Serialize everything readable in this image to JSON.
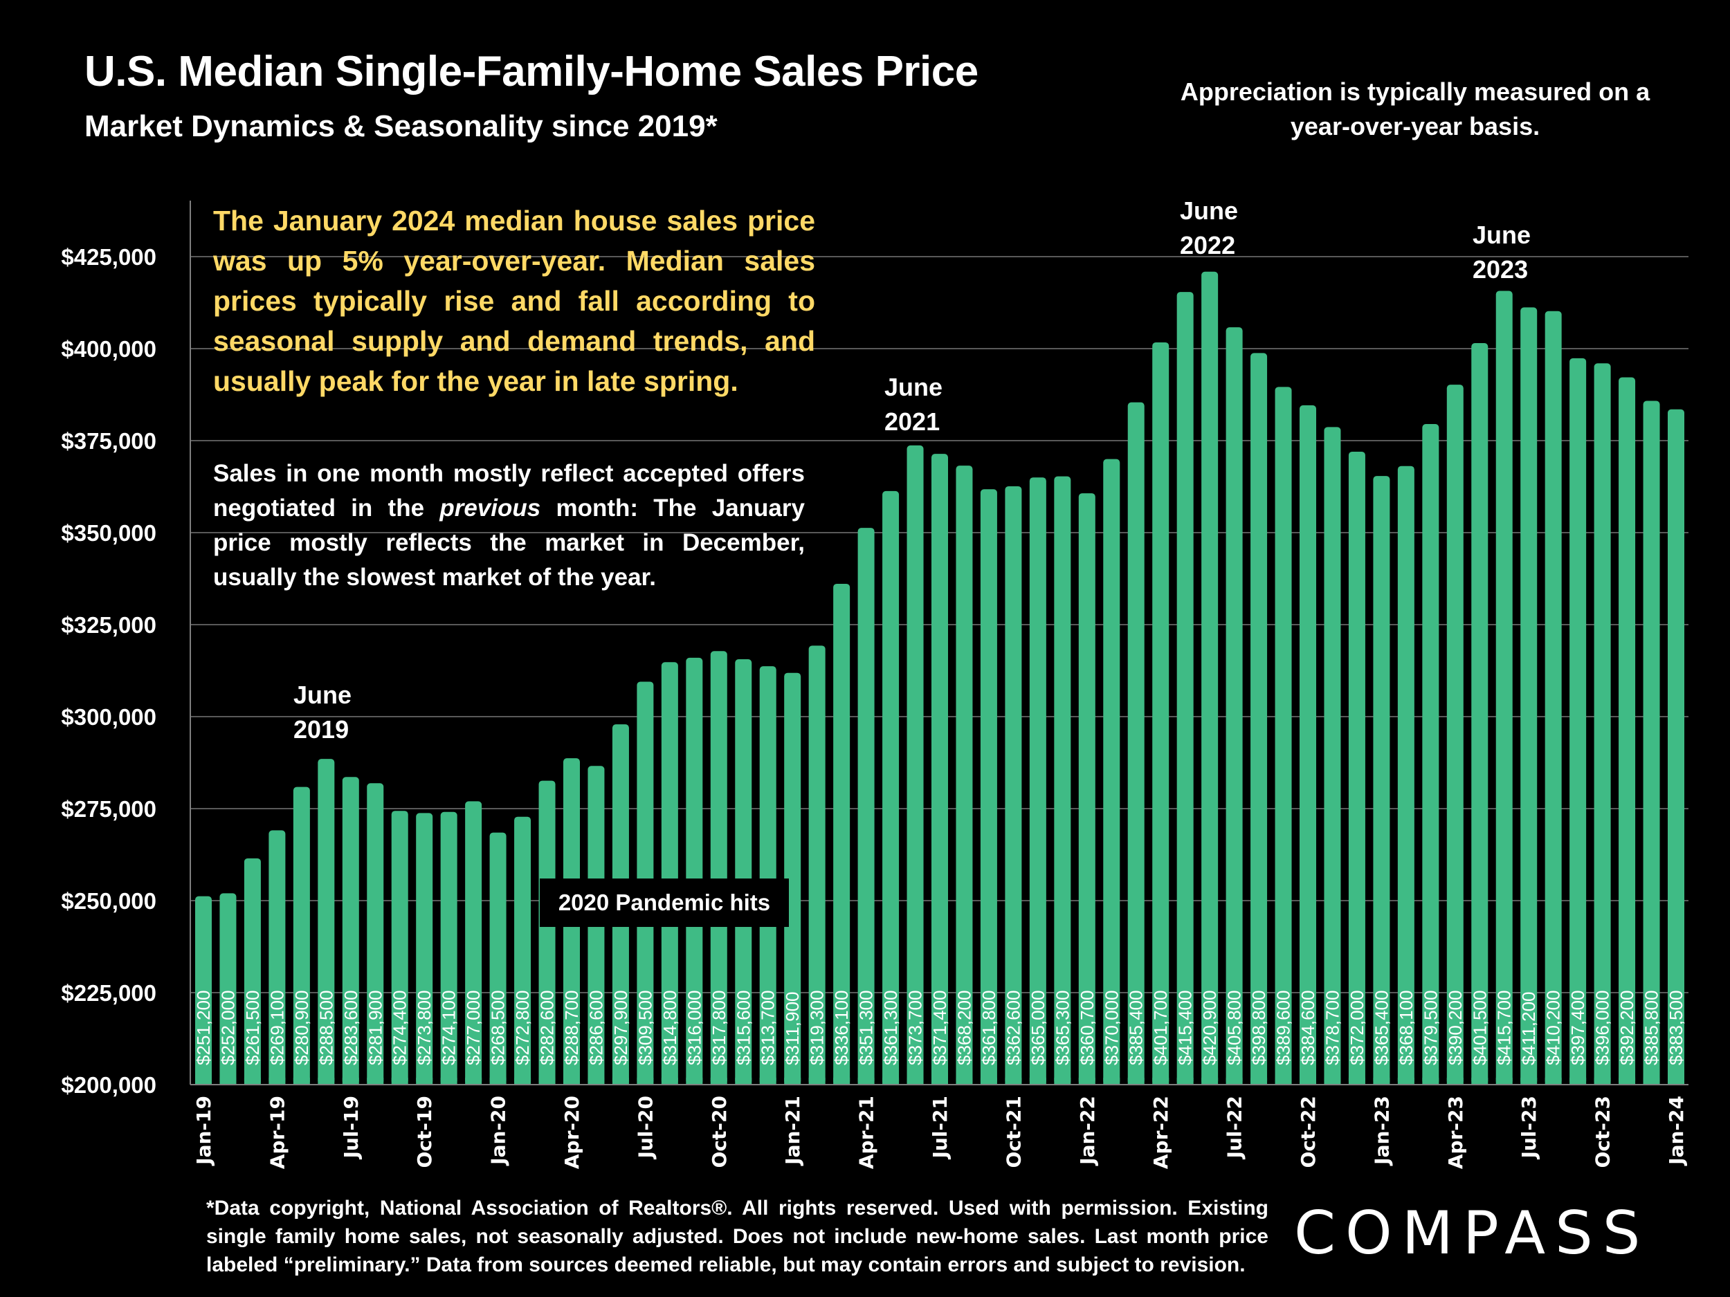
{
  "header": {
    "title": "U.S. Median Single-Family-Home Sales Price",
    "subtitle": "Market Dynamics & Seasonality since 2019*",
    "note": "Appreciation is typically measured on a year-over-year basis."
  },
  "callouts": {
    "gold": "The January 2024 median house sales price was up 5% year-over-year. Median sales prices typically rise and fall according to seasonal supply and demand trends, and usually peak for the year in late spring.",
    "white_before": "Sales in one month mostly reflect accepted offers negotiated in the ",
    "white_em": "previous",
    "white_after": " month: The January price mostly reflects the market in December, usually the slowest market of the year."
  },
  "annotations": {
    "june2019": {
      "line1": "June",
      "line2": "2019"
    },
    "june2021": {
      "line1": "June",
      "line2": "2021"
    },
    "june2022": {
      "line1": "June",
      "line2": "2022"
    },
    "june2023": {
      "line1": "June",
      "line2": "2023"
    },
    "pandemic": "2020 Pandemic hits"
  },
  "footer": {
    "text": "*Data copyright, National Association of Realtors®. All rights reserved. Used with permission. Existing single family home sales, not seasonally adjusted. Does not include new-home sales. Last month price labeled “preliminary.” Data from sources deemed reliable, but may contain errors and subject to revision.",
    "logo": "COMPASS"
  },
  "colors": {
    "bar": "#3fbb85",
    "callout_gold": "#ffd966",
    "background": "#000000",
    "grid": "#595959"
  },
  "chart_data": {
    "type": "bar",
    "title": "U.S. Median Single-Family-Home Sales Price",
    "xlabel": "",
    "ylabel": "",
    "ylim": [
      200000,
      425000
    ],
    "yticks": [
      200000,
      225000,
      250000,
      275000,
      300000,
      325000,
      350000,
      375000,
      400000,
      425000
    ],
    "ytick_labels": [
      "$200,000",
      "$225,000",
      "$250,000",
      "$275,000",
      "$300,000",
      "$325,000",
      "$350,000",
      "$375,000",
      "$400,000",
      "$425,000"
    ],
    "grid": true,
    "categories": [
      "Jan-19",
      "Feb-19",
      "Mar-19",
      "Apr-19",
      "May-19",
      "Jun-19",
      "Jul-19",
      "Aug-19",
      "Sep-19",
      "Oct-19",
      "Nov-19",
      "Dec-19",
      "Jan-20",
      "Feb-20",
      "Mar-20",
      "Apr-20",
      "May-20",
      "Jun-20",
      "Jul-20",
      "Aug-20",
      "Sep-20",
      "Oct-20",
      "Nov-20",
      "Dec-20",
      "Jan-21",
      "Feb-21",
      "Mar-21",
      "Apr-21",
      "May-21",
      "Jun-21",
      "Jul-21",
      "Aug-21",
      "Sep-21",
      "Oct-21",
      "Nov-21",
      "Dec-21",
      "Jan-22",
      "Feb-22",
      "Mar-22",
      "Apr-22",
      "May-22",
      "Jun-22",
      "Jul-22",
      "Aug-22",
      "Sep-22",
      "Oct-22",
      "Nov-22",
      "Dec-22",
      "Jan-23",
      "Feb-23",
      "Mar-23",
      "Apr-23",
      "May-23",
      "Jun-23",
      "Jul-23",
      "Aug-23",
      "Sep-23",
      "Oct-23",
      "Nov-23",
      "Dec-23",
      "Jan-24"
    ],
    "xtick_labels_shown": [
      "Jan-19",
      "Apr-19",
      "Jul-19",
      "Oct-19",
      "Jan-20",
      "Apr-20",
      "Jul-20",
      "Oct-20",
      "Jan-21",
      "Apr-21",
      "Jul-21",
      "Oct-21",
      "Jan-22",
      "Apr-22",
      "Jul-22",
      "Oct-22",
      "Jan-23",
      "Apr-23",
      "Jul-23",
      "Oct-23",
      "Jan-24"
    ],
    "values": [
      251200,
      252000,
      261500,
      269100,
      280900,
      288500,
      283600,
      281900,
      274400,
      273800,
      274100,
      277000,
      268500,
      272800,
      282600,
      288700,
      286600,
      297900,
      309500,
      314800,
      316000,
      317800,
      315600,
      313700,
      311900,
      319300,
      336100,
      351300,
      361300,
      373700,
      371400,
      368200,
      361800,
      362600,
      365000,
      365300,
      360700,
      370000,
      385400,
      401700,
      415400,
      420900,
      405800,
      398800,
      389600,
      384600,
      378700,
      372000,
      365400,
      368100,
      379500,
      390200,
      401500,
      415700,
      411200,
      410200,
      397400,
      396000,
      392200,
      385800,
      383500
    ],
    "data_labels": [
      "$251,200",
      "$252,000",
      "$261,500",
      "$269,100",
      "$280,900",
      "$288,500",
      "$283,600",
      "$281,900",
      "$274,400",
      "$273,800",
      "$274,100",
      "$277,000",
      "$268,500",
      "$272,800",
      "$282,600",
      "$288,700",
      "$286,600",
      "$297,900",
      "$309,500",
      "$314,800",
      "$316,000",
      "$317,800",
      "$315,600",
      "$313,700",
      "$311,900",
      "$319,300",
      "$336,100",
      "$351,300",
      "$361,300",
      "$373,700",
      "$371,400",
      "$368,200",
      "$361,800",
      "$362,600",
      "$365,000",
      "$365,300",
      "$360,700",
      "$370,000",
      "$385,400",
      "$401,700",
      "$415,400",
      "$420,900",
      "$405,800",
      "$398,800",
      "$389,600",
      "$384,600",
      "$378,700",
      "$372,000",
      "$365,400",
      "$368,100",
      "$379,500",
      "$390,200",
      "$401,500",
      "$415,700",
      "$411,200",
      "$410,200",
      "$397,400",
      "$396,000",
      "$392,200",
      "$385,800",
      "$383,500"
    ]
  }
}
